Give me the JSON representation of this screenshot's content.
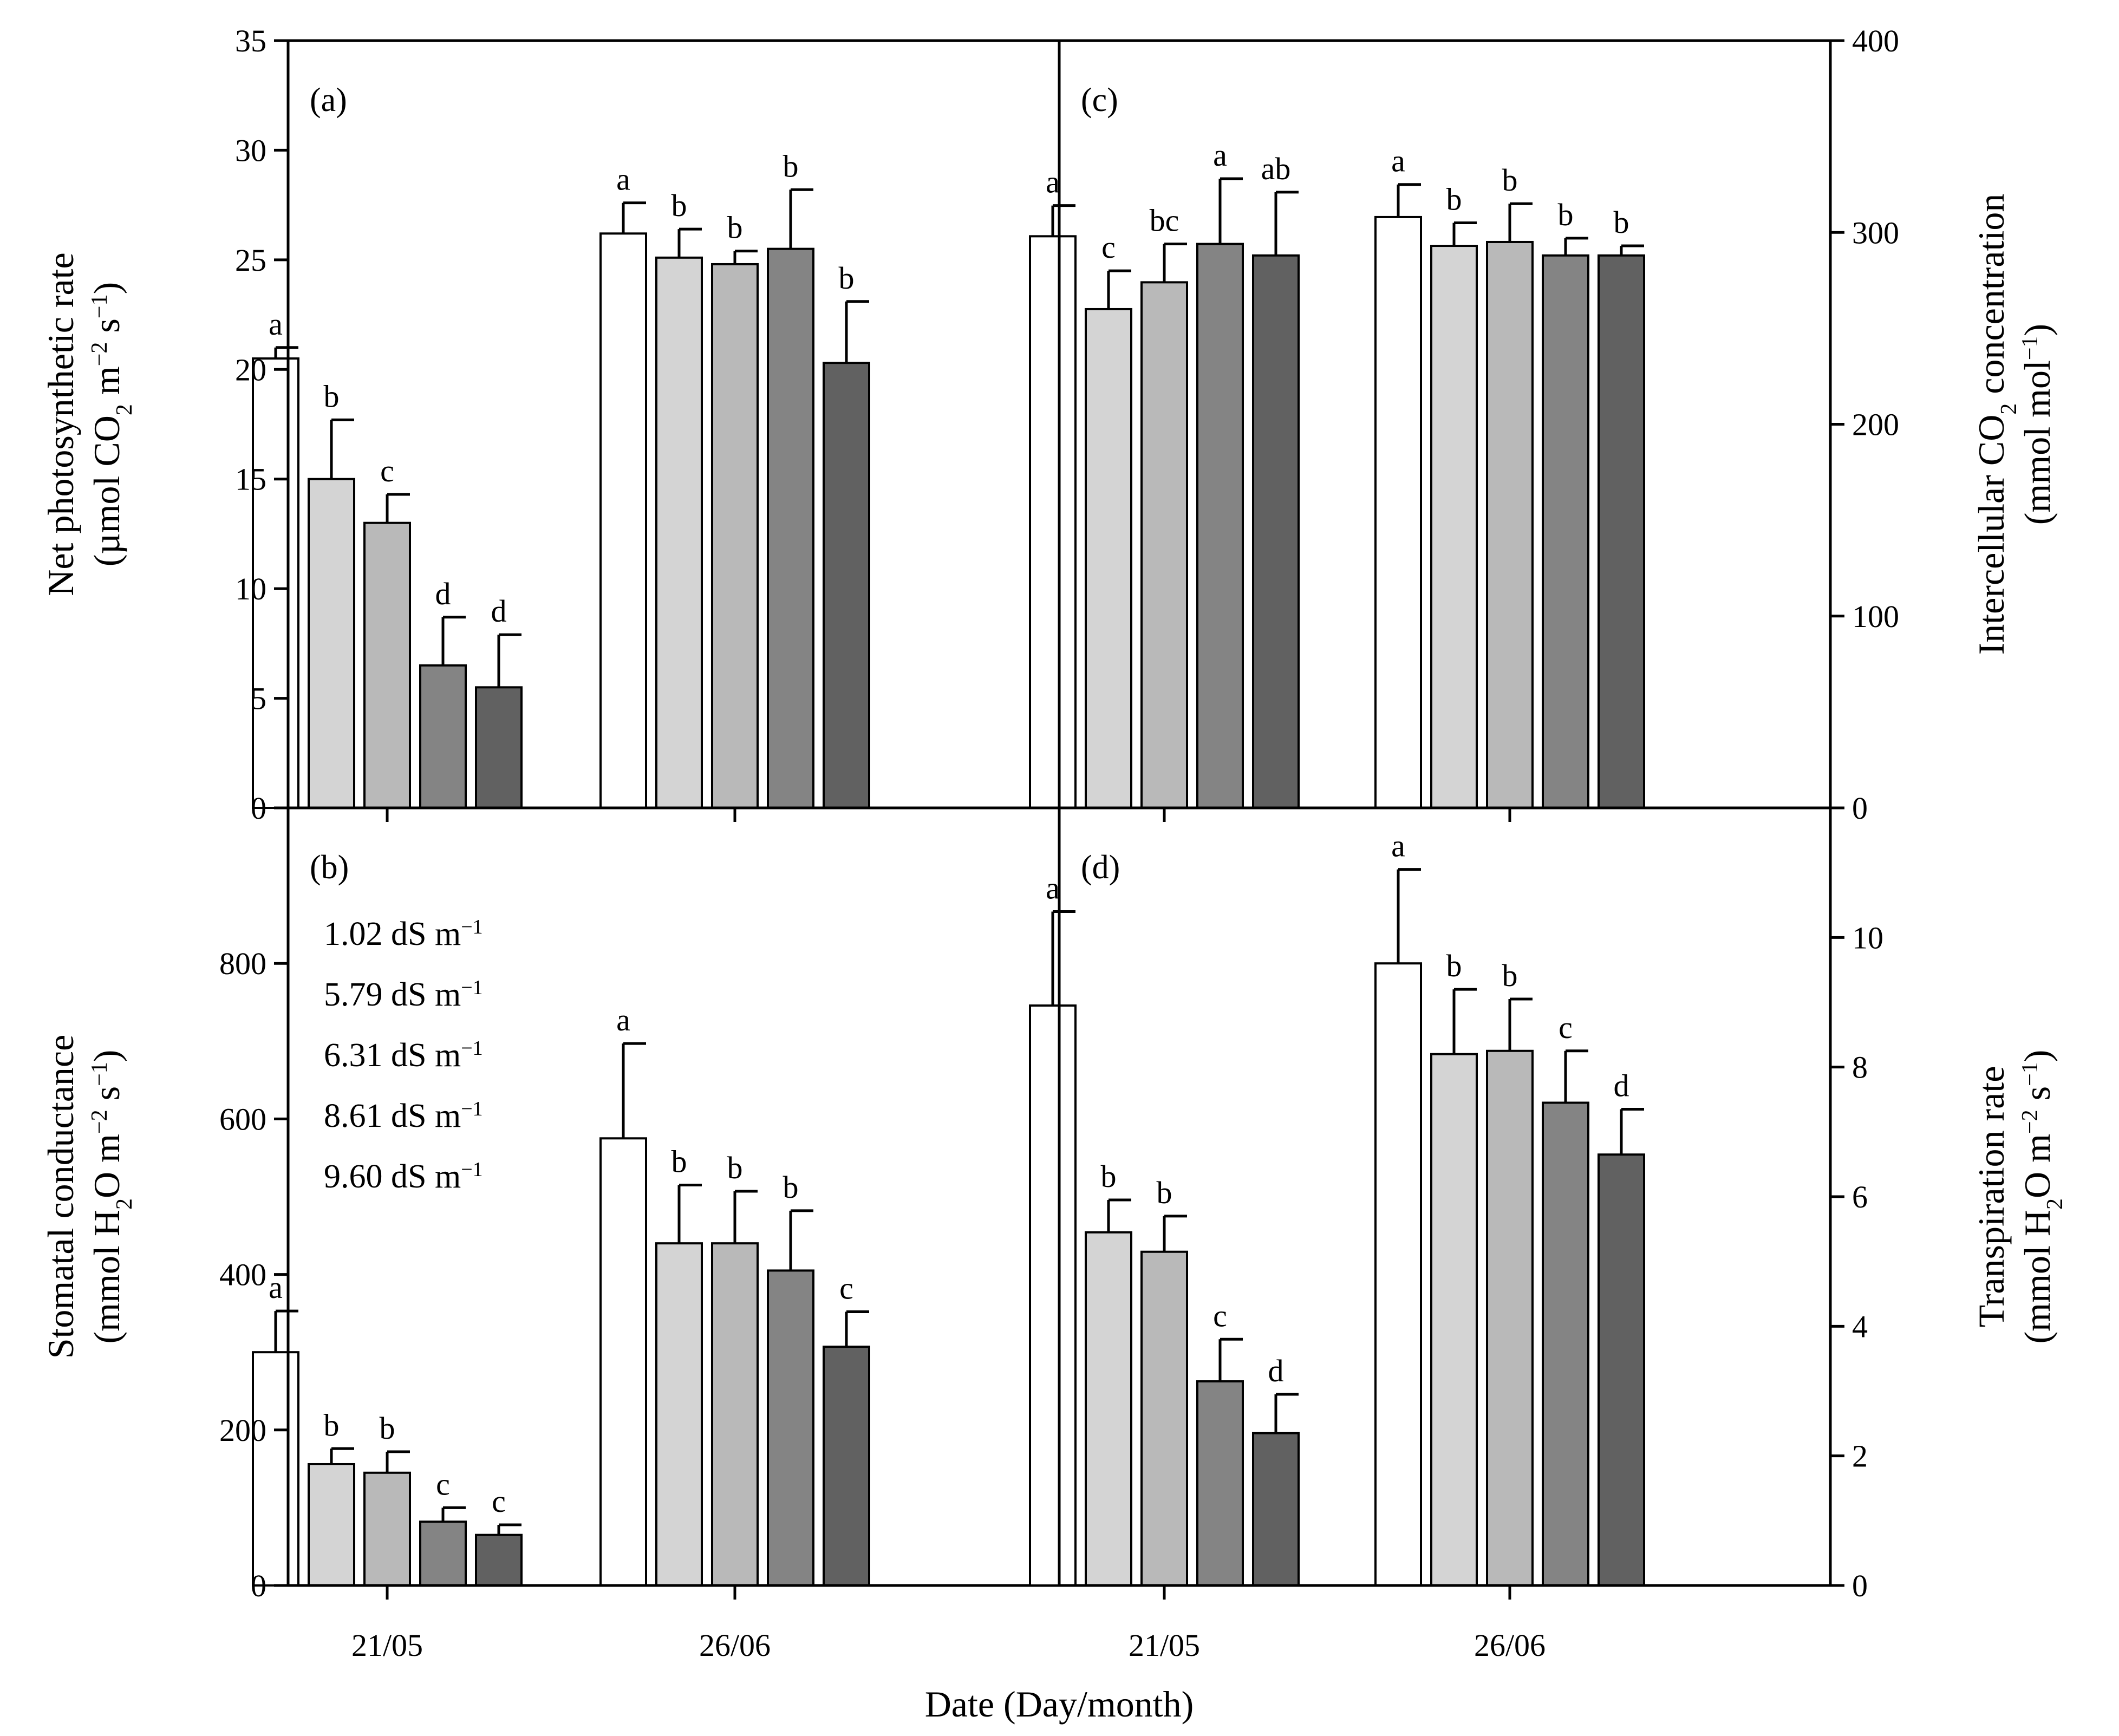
{
  "figure": {
    "xlabel": "Date (Day/month)",
    "categories": [
      "21/05",
      "26/06"
    ],
    "legend": [
      "1.02 dS m",
      "5.79 dS m",
      "6.31 dS m",
      "8.61 dS m",
      "9.60 dS m"
    ],
    "legend_unit_sup": "−1",
    "series_colors": [
      "#ffffff",
      "#d4d4d4",
      "#b9b9b9",
      "#848484",
      "#616161"
    ]
  },
  "chart_data": [
    {
      "type": "bar",
      "panel": "(a)",
      "ylabel_lines": [
        [
          {
            "t": "Net photosynthetic rate"
          }
        ],
        [
          {
            "t": "(µmol CO"
          },
          {
            "t": "2",
            "sub": true
          },
          {
            "t": " m"
          },
          {
            "t": "−2",
            "sup": true
          },
          {
            "t": " s"
          },
          {
            "t": "−1",
            "sup": true
          },
          {
            "t": ")"
          }
        ]
      ],
      "ylim": [
        0,
        35
      ],
      "yticks": [
        0,
        5,
        10,
        15,
        20,
        25,
        30,
        35
      ],
      "categories": [
        "21/05",
        "26/06"
      ],
      "series": [
        {
          "name": "1.02 dS m−1",
          "values": [
            20.5,
            26.2
          ],
          "errors": [
            0.5,
            1.4
          ],
          "labels": [
            "a",
            "a"
          ]
        },
        {
          "name": "5.79 dS m−1",
          "values": [
            15.0,
            25.1
          ],
          "errors": [
            2.7,
            1.3
          ],
          "labels": [
            "b",
            "b"
          ]
        },
        {
          "name": "6.31 dS m−1",
          "values": [
            13.0,
            24.8
          ],
          "errors": [
            1.3,
            0.6
          ],
          "labels": [
            "c",
            "b"
          ]
        },
        {
          "name": "8.61 dS m−1",
          "values": [
            6.5,
            25.5
          ],
          "errors": [
            2.2,
            2.7
          ],
          "labels": [
            "d",
            "b"
          ]
        },
        {
          "name": "9.60 dS m−1",
          "values": [
            5.5,
            20.3
          ],
          "errors": [
            2.4,
            2.8
          ],
          "labels": [
            "d",
            "b"
          ]
        }
      ]
    },
    {
      "type": "bar",
      "panel": "(c)",
      "ylabel_lines": [
        [
          {
            "t": "Intercellular CO"
          },
          {
            "t": "2",
            "sub": true
          },
          {
            "t": " concentration"
          }
        ],
        [
          {
            "t": "(mmol mol"
          },
          {
            "t": "−1",
            "sup": true
          },
          {
            "t": ")"
          }
        ]
      ],
      "ylim": [
        0,
        400
      ],
      "yticks": [
        0,
        100,
        200,
        300,
        400
      ],
      "categories": [
        "21/05",
        "26/06"
      ],
      "series": [
        {
          "name": "1.02 dS m−1",
          "values": [
            298,
            308
          ],
          "errors": [
            16,
            17
          ],
          "labels": [
            "a",
            "a"
          ]
        },
        {
          "name": "5.79 dS m−1",
          "values": [
            260,
            293
          ],
          "errors": [
            20,
            12
          ],
          "labels": [
            "c",
            "b"
          ]
        },
        {
          "name": "6.31 dS m−1",
          "values": [
            274,
            295
          ],
          "errors": [
            20,
            20
          ],
          "labels": [
            "bc",
            "b"
          ]
        },
        {
          "name": "8.61 dS m−1",
          "values": [
            294,
            288
          ],
          "errors": [
            34,
            9
          ],
          "labels": [
            "a",
            "b"
          ]
        },
        {
          "name": "9.60 dS m−1",
          "values": [
            288,
            288
          ],
          "errors": [
            33,
            5
          ],
          "labels": [
            "ab",
            "b"
          ]
        }
      ]
    },
    {
      "type": "bar",
      "panel": "(b)",
      "ylabel_lines": [
        [
          {
            "t": "Stomatal conductance"
          }
        ],
        [
          {
            "t": "(mmol H"
          },
          {
            "t": "2",
            "sub": true
          },
          {
            "t": "O m"
          },
          {
            "t": "−2",
            "sup": true
          },
          {
            "t": " s"
          },
          {
            "t": "−1",
            "sup": true
          },
          {
            "t": ")"
          }
        ]
      ],
      "ylim": [
        0,
        1000
      ],
      "yticks": [
        0,
        200,
        400,
        600,
        800
      ],
      "categories": [
        "21/05",
        "26/06"
      ],
      "series": [
        {
          "name": "1.02 dS m−1",
          "values": [
            300,
            575
          ],
          "errors": [
            53,
            122
          ],
          "labels": [
            "a",
            "a"
          ]
        },
        {
          "name": "5.79 dS m−1",
          "values": [
            156,
            440
          ],
          "errors": [
            20,
            75
          ],
          "labels": [
            "b",
            "b"
          ]
        },
        {
          "name": "6.31 dS m−1",
          "values": [
            145,
            440
          ],
          "errors": [
            27,
            67
          ],
          "labels": [
            "b",
            "b"
          ]
        },
        {
          "name": "8.61 dS m−1",
          "values": [
            82,
            405
          ],
          "errors": [
            18,
            77
          ],
          "labels": [
            "c",
            "b"
          ]
        },
        {
          "name": "9.60 dS m−1",
          "values": [
            65,
            307
          ],
          "errors": [
            13,
            45
          ],
          "labels": [
            "c",
            "c"
          ]
        }
      ]
    },
    {
      "type": "bar",
      "panel": "(d)",
      "ylabel_lines": [
        [
          {
            "t": "Transpiration rate"
          }
        ],
        [
          {
            "t": "(mmol H"
          },
          {
            "t": "2",
            "sub": true
          },
          {
            "t": "O m"
          },
          {
            "t": "−2",
            "sup": true
          },
          {
            "t": " s"
          },
          {
            "t": "−1",
            "sup": true
          },
          {
            "t": ")"
          }
        ]
      ],
      "ylim": [
        0,
        12
      ],
      "yticks": [
        0,
        2,
        4,
        6,
        8,
        10
      ],
      "categories": [
        "21/05",
        "26/06"
      ],
      "series": [
        {
          "name": "1.02 dS m−1",
          "values": [
            8.95,
            9.6
          ],
          "errors": [
            1.45,
            1.45
          ],
          "labels": [
            "a",
            "a"
          ]
        },
        {
          "name": "5.79 dS m−1",
          "values": [
            5.45,
            8.2
          ],
          "errors": [
            0.5,
            1.0
          ],
          "labels": [
            "b",
            "b"
          ]
        },
        {
          "name": "6.31 dS m−1",
          "values": [
            5.15,
            8.25
          ],
          "errors": [
            0.55,
            0.8
          ],
          "labels": [
            "b",
            "b"
          ]
        },
        {
          "name": "8.61 dS m−1",
          "values": [
            3.15,
            7.45
          ],
          "errors": [
            0.65,
            0.8
          ],
          "labels": [
            "c",
            "c"
          ]
        },
        {
          "name": "9.60 dS m−1",
          "values": [
            2.35,
            6.65
          ],
          "errors": [
            0.6,
            0.7
          ],
          "labels": [
            "d",
            "d"
          ]
        }
      ]
    }
  ]
}
